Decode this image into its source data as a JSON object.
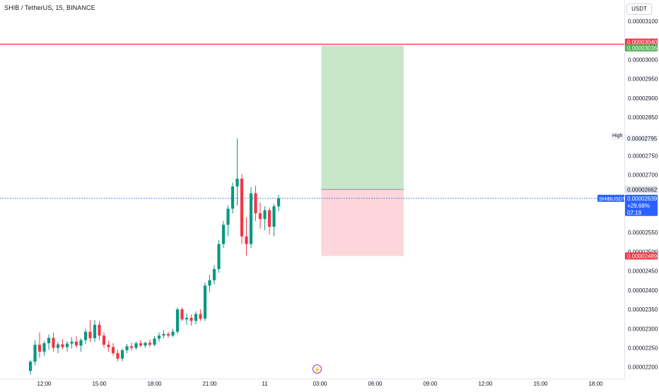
{
  "header": {
    "symbol_title": "SHIB / TetherUS, 15, BINANCE",
    "currency": "USDT"
  },
  "y_axis": {
    "min": 2.17e-05,
    "max": 3.155e-05,
    "ticks": [
      "0.00003100",
      "0.00003000",
      "0.00002950",
      "0.00002900",
      "0.00002850",
      "0.00002750",
      "0.00002700",
      "0.00002550",
      "0.00002500",
      "0.00002450",
      "0.00002400",
      "0.00002350",
      "0.00002300",
      "0.00002250",
      "0.00002200"
    ]
  },
  "x_axis": {
    "ticks": [
      {
        "label": "12:00",
        "x": 3
      },
      {
        "label": "15:00",
        "x": 15
      },
      {
        "label": "18:00",
        "x": 27
      },
      {
        "label": "21:00",
        "x": 39
      },
      {
        "label": "11",
        "x": 51
      },
      {
        "label": "03:00",
        "x": 63
      },
      {
        "label": "06:00",
        "x": 75
      },
      {
        "label": "09:00",
        "x": 87
      },
      {
        "label": "12:00",
        "x": 99
      },
      {
        "label": "15:00",
        "x": 111
      },
      {
        "label": "18:00",
        "x": 123
      }
    ]
  },
  "price_labels": {
    "upper_line": {
      "text": "0.00003040",
      "value": 3.04e-05,
      "color": "#f23645"
    },
    "target": {
      "text": "0.00003036",
      "value": 3.036e-05,
      "color": "#4caf50"
    },
    "high_tag": "High",
    "high": {
      "text": "0.00002795",
      "value": 2.795e-05
    },
    "entry": {
      "text": "0.00002662",
      "value": 2.662e-05
    },
    "ticker": "SHIBUSDT",
    "current": {
      "text": "0.00002639",
      "value": 2.639e-05,
      "change": "+29.68%",
      "countdown": "07:19",
      "color": "#2962ff"
    },
    "stop": {
      "text": "0.00002489",
      "value": 2.489e-05,
      "color": "#f23645"
    }
  },
  "position": {
    "start_index": 63.3,
    "end_index": 81.2,
    "entry": 2.662e-05,
    "target": 3.036e-05,
    "stop": 2.489e-05,
    "profit_color": "#c8e6c9",
    "loss_color": "#fcd6da"
  },
  "colors": {
    "up": "#089981",
    "down": "#f23645"
  },
  "event_icon": "lightning-icon",
  "chart_data": {
    "type": "candlestick",
    "series": [
      {
        "name": "SHIBUSDT",
        "ohlc": [
          [
            2.19e-05,
            2.218e-05,
            2.18e-05,
            2.214e-05
          ],
          [
            2.214e-05,
            2.27e-05,
            2.205e-05,
            2.258e-05
          ],
          [
            2.258e-05,
            2.29e-05,
            2.225e-05,
            2.24e-05
          ],
          [
            2.24e-05,
            2.268e-05,
            2.23e-05,
            2.262e-05
          ],
          [
            2.262e-05,
            2.285e-05,
            2.245e-05,
            2.276e-05
          ],
          [
            2.276e-05,
            2.29e-05,
            2.24e-05,
            2.25e-05
          ],
          [
            2.25e-05,
            2.265e-05,
            2.236e-05,
            2.259e-05
          ],
          [
            2.259e-05,
            2.272e-05,
            2.246e-05,
            2.252e-05
          ],
          [
            2.252e-05,
            2.268e-05,
            2.24e-05,
            2.261e-05
          ],
          [
            2.261e-05,
            2.278e-05,
            2.248e-05,
            2.266e-05
          ],
          [
            2.266e-05,
            2.28e-05,
            2.25e-05,
            2.256e-05
          ],
          [
            2.256e-05,
            2.275e-05,
            2.24e-05,
            2.27e-05
          ],
          [
            2.27e-05,
            2.3e-05,
            2.26e-05,
            2.292e-05
          ],
          [
            2.292e-05,
            2.322e-05,
            2.265e-05,
            2.275e-05
          ],
          [
            2.275e-05,
            2.322e-05,
            2.265e-05,
            2.31e-05
          ],
          [
            2.31e-05,
            2.32e-05,
            2.27e-05,
            2.282e-05
          ],
          [
            2.282e-05,
            2.29e-05,
            2.25e-05,
            2.258e-05
          ],
          [
            2.258e-05,
            2.268e-05,
            2.24e-05,
            2.252e-05
          ],
          [
            2.252e-05,
            2.262e-05,
            2.23e-05,
            2.236e-05
          ],
          [
            2.236e-05,
            2.245e-05,
            2.215e-05,
            2.222e-05
          ],
          [
            2.222e-05,
            2.248e-05,
            2.215e-05,
            2.244e-05
          ],
          [
            2.244e-05,
            2.26e-05,
            2.236e-05,
            2.254e-05
          ],
          [
            2.254e-05,
            2.264e-05,
            2.242e-05,
            2.25e-05
          ],
          [
            2.25e-05,
            2.266e-05,
            2.245e-05,
            2.262e-05
          ],
          [
            2.262e-05,
            2.27e-05,
            2.252e-05,
            2.256e-05
          ],
          [
            2.256e-05,
            2.266e-05,
            2.25e-05,
            2.263e-05
          ],
          [
            2.263e-05,
            2.272e-05,
            2.252e-05,
            2.258e-05
          ],
          [
            2.258e-05,
            2.28e-05,
            2.254e-05,
            2.274e-05
          ],
          [
            2.274e-05,
            2.29e-05,
            2.266e-05,
            2.282e-05
          ],
          [
            2.282e-05,
            2.296e-05,
            2.275e-05,
            2.286e-05
          ],
          [
            2.286e-05,
            2.292e-05,
            2.276e-05,
            2.282e-05
          ],
          [
            2.282e-05,
            2.3e-05,
            2.278e-05,
            2.292e-05
          ],
          [
            2.292e-05,
            2.355e-05,
            2.286e-05,
            2.35e-05
          ],
          [
            2.35e-05,
            2.355e-05,
            2.32e-05,
            2.324e-05
          ],
          [
            2.324e-05,
            2.34e-05,
            2.31e-05,
            2.328e-05
          ],
          [
            2.328e-05,
            2.336e-05,
            2.308e-05,
            2.32e-05
          ],
          [
            2.32e-05,
            2.345e-05,
            2.312e-05,
            2.338e-05
          ],
          [
            2.338e-05,
            2.35e-05,
            2.32e-05,
            2.326e-05
          ],
          [
            2.326e-05,
            2.42e-05,
            2.32e-05,
            2.412e-05
          ],
          [
            2.412e-05,
            2.44e-05,
            2.395e-05,
            2.426e-05
          ],
          [
            2.426e-05,
            2.465e-05,
            2.415e-05,
            2.455e-05
          ],
          [
            2.455e-05,
            2.53e-05,
            2.445e-05,
            2.52e-05
          ],
          [
            2.52e-05,
            2.58e-05,
            2.51e-05,
            2.57e-05
          ],
          [
            2.57e-05,
            2.62e-05,
            2.54e-05,
            2.612e-05
          ],
          [
            2.612e-05,
            2.68e-05,
            2.6e-05,
            2.67e-05
          ],
          [
            2.67e-05,
            2.795e-05,
            2.62e-05,
            2.69e-05
          ],
          [
            2.69e-05,
            2.702e-05,
            2.52e-05,
            2.54e-05
          ],
          [
            2.54e-05,
            2.59e-05,
            2.49e-05,
            2.52e-05
          ],
          [
            2.52e-05,
            2.668e-05,
            2.51e-05,
            2.652e-05
          ],
          [
            2.652e-05,
            2.672e-05,
            2.58e-05,
            2.6e-05
          ],
          [
            2.6e-05,
            2.628e-05,
            2.56e-05,
            2.585e-05
          ],
          [
            2.585e-05,
            2.618e-05,
            2.556e-05,
            2.608e-05
          ],
          [
            2.608e-05,
            2.615e-05,
            2.545e-05,
            2.565e-05
          ],
          [
            2.565e-05,
            2.625e-05,
            2.54e-05,
            2.618e-05
          ],
          [
            2.618e-05,
            2.648e-05,
            2.605e-05,
            2.639e-05
          ]
        ]
      }
    ],
    "title": "SHIB / TetherUS, 15, BINANCE",
    "ylabel": "USDT",
    "ylim": [
      2.17e-05,
      3.155e-05
    ]
  }
}
